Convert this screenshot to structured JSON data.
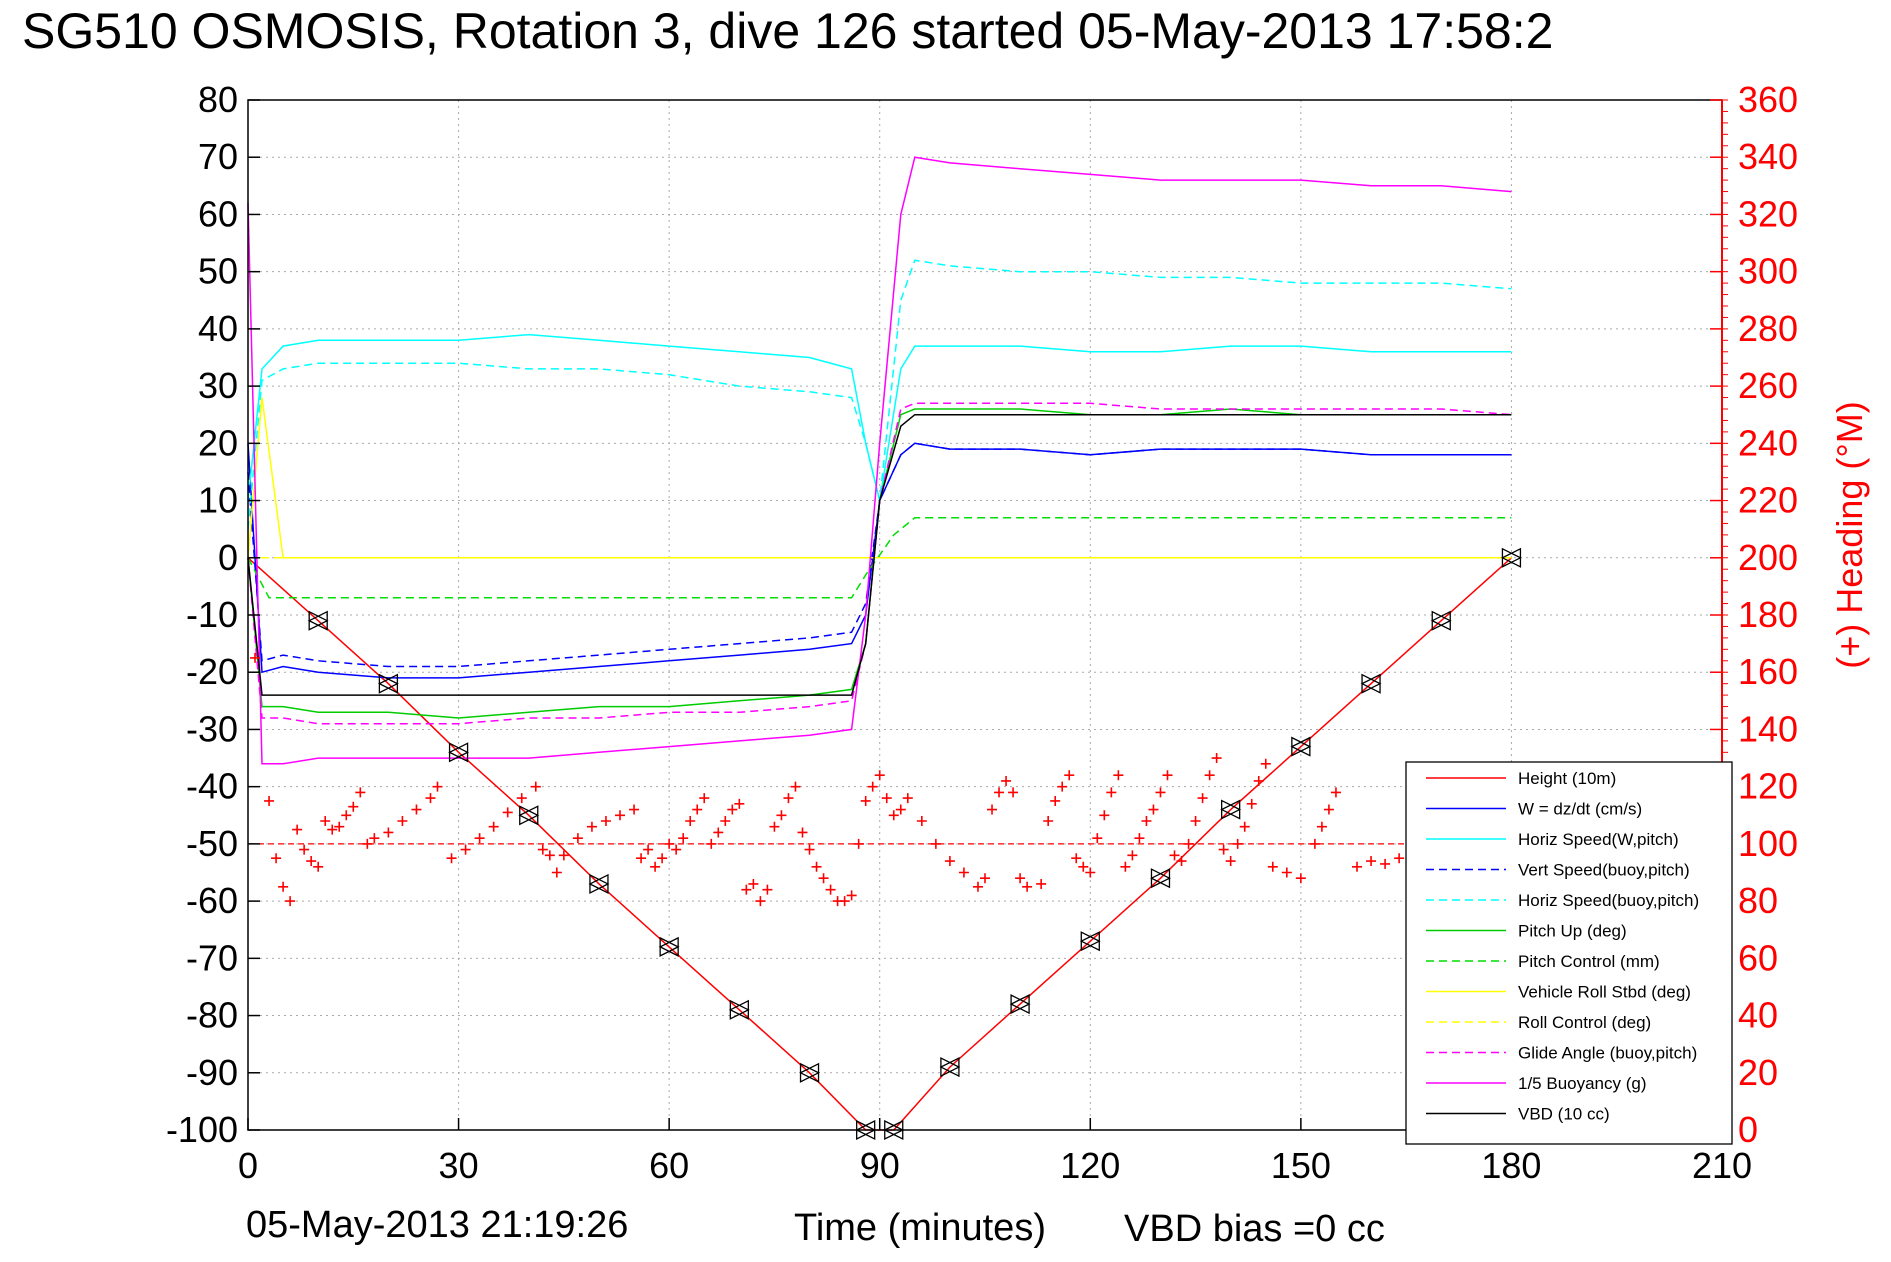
{
  "title": "SG510 OSMOSIS, Rotation 3, dive 126 started 05-May-2013 17:58:2",
  "footer": {
    "timestamp": "05-May-2013 21:19:26",
    "vbd_note": "VBD bias =0 cc"
  },
  "chart_data": {
    "type": "line",
    "xlabel": "Time (minutes)",
    "ylabel_right": "(+) Heading (°M)",
    "xlim": [
      0,
      210
    ],
    "ylim": [
      -100,
      80
    ],
    "ylim_right": [
      0,
      360
    ],
    "xticks": [
      0,
      30,
      60,
      90,
      120,
      150,
      180,
      210
    ],
    "yticks": [
      80,
      70,
      60,
      50,
      40,
      30,
      20,
      10,
      0,
      -10,
      -20,
      -30,
      -40,
      -50,
      -60,
      -70,
      -80,
      -90,
      -100
    ],
    "yticks_right": [
      360,
      340,
      320,
      300,
      280,
      260,
      240,
      220,
      200,
      180,
      160,
      140,
      120,
      100,
      80,
      60,
      40,
      20,
      0
    ],
    "grid": true,
    "legend_position": "bottom-right",
    "colors": {
      "axis": "#000000",
      "right_axis": "#ff0000",
      "grid": "#aaaaaa"
    },
    "series": [
      {
        "name": "Height (10m)",
        "color": "#ff0000",
        "style": "solid",
        "x": [
          0,
          10,
          20,
          30,
          40,
          50,
          60,
          70,
          80,
          88,
          92,
          100,
          110,
          120,
          130,
          140,
          150,
          160,
          170,
          180
        ],
        "y": [
          0,
          -11,
          -22,
          -34,
          -45,
          -57,
          -68,
          -79,
          -90,
          -100,
          -100,
          -89,
          -78,
          -67,
          -56,
          -44,
          -33,
          -22,
          -11,
          0
        ]
      },
      {
        "name": "W = dz/dt (cm/s)",
        "color": "#0000ff",
        "style": "solid",
        "x": [
          0,
          2,
          5,
          10,
          20,
          30,
          40,
          50,
          60,
          70,
          80,
          86,
          88,
          90,
          93,
          95,
          100,
          110,
          120,
          130,
          140,
          150,
          160,
          170,
          180
        ],
        "y": [
          20,
          -20,
          -19,
          -20,
          -21,
          -21,
          -20,
          -19,
          -18,
          -17,
          -16,
          -15,
          -10,
          10,
          18,
          20,
          19,
          19,
          18,
          19,
          19,
          19,
          18,
          18,
          18
        ]
      },
      {
        "name": "Horiz Speed(W,pitch)",
        "color": "#00ffff",
        "style": "solid",
        "x": [
          0,
          2,
          5,
          10,
          20,
          30,
          40,
          50,
          60,
          70,
          80,
          86,
          88,
          90,
          93,
          95,
          100,
          110,
          120,
          130,
          140,
          150,
          160,
          170,
          180
        ],
        "y": [
          10,
          33,
          37,
          38,
          38,
          38,
          39,
          38,
          37,
          36,
          35,
          33,
          20,
          10,
          33,
          37,
          37,
          37,
          36,
          36,
          37,
          37,
          36,
          36,
          36
        ]
      },
      {
        "name": "Vert Speed(buoy,pitch)",
        "color": "#0000ff",
        "style": "dashed",
        "x": [
          0,
          2,
          5,
          10,
          20,
          30,
          40,
          50,
          60,
          70,
          80,
          86,
          88,
          90,
          93,
          95,
          100,
          110,
          120,
          130,
          140,
          150,
          160,
          170,
          180
        ],
        "y": [
          15,
          -18,
          -17,
          -18,
          -19,
          -19,
          -18,
          -17,
          -16,
          -15,
          -14,
          -13,
          -8,
          10,
          18,
          20,
          19,
          19,
          18,
          19,
          19,
          19,
          18,
          18,
          18
        ]
      },
      {
        "name": "Horiz Speed(buoy,pitch)",
        "color": "#00ffff",
        "style": "dashed",
        "x": [
          0,
          2,
          5,
          10,
          20,
          30,
          40,
          50,
          60,
          70,
          80,
          86,
          88,
          90,
          93,
          95,
          100,
          110,
          120,
          130,
          140,
          150,
          160,
          170,
          180
        ],
        "y": [
          5,
          31,
          33,
          34,
          34,
          34,
          33,
          33,
          32,
          30,
          29,
          28,
          20,
          10,
          45,
          52,
          51,
          50,
          50,
          49,
          49,
          48,
          48,
          48,
          47
        ]
      },
      {
        "name": "Pitch Up (deg)",
        "color": "#00cc00",
        "style": "solid",
        "x": [
          0,
          2,
          5,
          10,
          20,
          30,
          40,
          50,
          60,
          70,
          80,
          86,
          88,
          90,
          93,
          95,
          100,
          110,
          120,
          130,
          140,
          150,
          160,
          170,
          180
        ],
        "y": [
          0,
          -26,
          -26,
          -27,
          -27,
          -28,
          -27,
          -26,
          -26,
          -25,
          -24,
          -23,
          -15,
          10,
          25,
          26,
          26,
          26,
          25,
          25,
          26,
          25,
          25,
          25,
          25
        ]
      },
      {
        "name": "Pitch Control (mm)",
        "color": "#00dd00",
        "style": "dashed",
        "x": [
          0,
          3,
          10,
          20,
          40,
          60,
          86,
          88,
          92,
          95,
          120,
          150,
          180
        ],
        "y": [
          0,
          -7,
          -7,
          -7,
          -7,
          -7,
          -7,
          -3,
          4,
          7,
          7,
          7,
          7
        ]
      },
      {
        "name": "Vehicle Roll Stbd (deg)",
        "color": "#ffff00",
        "style": "solid",
        "x": [
          0,
          2,
          5,
          10,
          20,
          40,
          60,
          80,
          90,
          100,
          120,
          140,
          160,
          180
        ],
        "y": [
          0,
          28,
          0,
          0,
          0,
          0,
          0,
          0,
          0,
          0,
          0,
          0,
          0,
          0
        ]
      },
      {
        "name": "Roll Control (deg)",
        "color": "#ffff00",
        "style": "dashed",
        "x": [
          0,
          10,
          30,
          60,
          90,
          120,
          150,
          180
        ],
        "y": [
          0,
          0,
          0,
          0,
          0,
          0,
          0,
          0
        ]
      },
      {
        "name": "Glide Angle (buoy,pitch)",
        "color": "#ff00ff",
        "style": "dashed",
        "x": [
          0,
          2,
          5,
          10,
          20,
          30,
          40,
          50,
          60,
          70,
          80,
          86,
          88,
          90,
          93,
          95,
          100,
          110,
          120,
          130,
          140,
          150,
          160,
          170,
          180
        ],
        "y": [
          0,
          -28,
          -28,
          -29,
          -29,
          -29,
          -28,
          -28,
          -27,
          -27,
          -26,
          -25,
          -15,
          10,
          26,
          27,
          27,
          27,
          27,
          26,
          26,
          26,
          26,
          26,
          25
        ]
      },
      {
        "name": "1/5 Buoyancy (g)",
        "color": "#ff00ff",
        "style": "solid",
        "x": [
          0,
          2,
          5,
          10,
          20,
          30,
          40,
          50,
          60,
          70,
          80,
          86,
          88,
          90,
          93,
          95,
          100,
          110,
          120,
          130,
          140,
          150,
          160,
          170,
          180
        ],
        "y": [
          62,
          -36,
          -36,
          -35,
          -35,
          -35,
          -35,
          -34,
          -33,
          -32,
          -31,
          -30,
          -10,
          20,
          60,
          70,
          69,
          68,
          67,
          66,
          66,
          66,
          65,
          65,
          64
        ]
      },
      {
        "name": "VBD (10 cc)",
        "color": "#000000",
        "style": "solid",
        "x": [
          0,
          2,
          5,
          10,
          20,
          30,
          40,
          50,
          60,
          70,
          80,
          86,
          88,
          90,
          93,
          95,
          100,
          110,
          120,
          130,
          140,
          150,
          160,
          170,
          180
        ],
        "y": [
          0,
          -24,
          -24,
          -24,
          -24,
          -24,
          -24,
          -24,
          -24,
          -24,
          -24,
          -24,
          -15,
          10,
          23,
          25,
          25,
          25,
          25,
          25,
          25,
          25,
          25,
          25,
          25
        ]
      }
    ],
    "heading_series": {
      "axis": "right",
      "marker": "+",
      "color": "#ff0000",
      "reference_line": 100,
      "points": [
        [
          1,
          165
        ],
        [
          3,
          115
        ],
        [
          4,
          95
        ],
        [
          5,
          85
        ],
        [
          6,
          80
        ],
        [
          7,
          105
        ],
        [
          8,
          98
        ],
        [
          9,
          94
        ],
        [
          10,
          92
        ],
        [
          11,
          108
        ],
        [
          12,
          105
        ],
        [
          13,
          106
        ],
        [
          14,
          110
        ],
        [
          15,
          113
        ],
        [
          16,
          118
        ],
        [
          17,
          100
        ],
        [
          18,
          102
        ],
        [
          20,
          104
        ],
        [
          22,
          108
        ],
        [
          24,
          112
        ],
        [
          26,
          116
        ],
        [
          27,
          120
        ],
        [
          29,
          95
        ],
        [
          31,
          98
        ],
        [
          33,
          102
        ],
        [
          35,
          106
        ],
        [
          37,
          111
        ],
        [
          39,
          116
        ],
        [
          41,
          120
        ],
        [
          42,
          98
        ],
        [
          43,
          96
        ],
        [
          44,
          90
        ],
        [
          45,
          96
        ],
        [
          47,
          102
        ],
        [
          49,
          106
        ],
        [
          51,
          108
        ],
        [
          53,
          110
        ],
        [
          55,
          112
        ],
        [
          56,
          95
        ],
        [
          57,
          98
        ],
        [
          58,
          92
        ],
        [
          59,
          95
        ],
        [
          60,
          100
        ],
        [
          61,
          98
        ],
        [
          62,
          102
        ],
        [
          63,
          108
        ],
        [
          64,
          112
        ],
        [
          65,
          116
        ],
        [
          66,
          100
        ],
        [
          67,
          104
        ],
        [
          68,
          108
        ],
        [
          69,
          112
        ],
        [
          70,
          114
        ],
        [
          71,
          84
        ],
        [
          72,
          86
        ],
        [
          73,
          80
        ],
        [
          74,
          84
        ],
        [
          75,
          106
        ],
        [
          76,
          110
        ],
        [
          77,
          116
        ],
        [
          78,
          120
        ],
        [
          79,
          104
        ],
        [
          80,
          98
        ],
        [
          81,
          92
        ],
        [
          82,
          88
        ],
        [
          83,
          84
        ],
        [
          84,
          80
        ],
        [
          85,
          80
        ],
        [
          86,
          82
        ],
        [
          87,
          100
        ],
        [
          88,
          115
        ],
        [
          89,
          120
        ],
        [
          90,
          124
        ],
        [
          91,
          116
        ],
        [
          92,
          110
        ],
        [
          93,
          112
        ],
        [
          94,
          116
        ],
        [
          96,
          108
        ],
        [
          98,
          100
        ],
        [
          100,
          94
        ],
        [
          102,
          90
        ],
        [
          104,
          85
        ],
        [
          105,
          88
        ],
        [
          106,
          112
        ],
        [
          107,
          118
        ],
        [
          108,
          122
        ],
        [
          109,
          118
        ],
        [
          110,
          88
        ],
        [
          111,
          85
        ],
        [
          113,
          86
        ],
        [
          114,
          108
        ],
        [
          115,
          115
        ],
        [
          116,
          120
        ],
        [
          117,
          124
        ],
        [
          118,
          95
        ],
        [
          119,
          92
        ],
        [
          120,
          90
        ],
        [
          121,
          102
        ],
        [
          122,
          110
        ],
        [
          123,
          118
        ],
        [
          124,
          124
        ],
        [
          125,
          92
        ],
        [
          126,
          96
        ],
        [
          127,
          102
        ],
        [
          128,
          108
        ],
        [
          129,
          112
        ],
        [
          130,
          118
        ],
        [
          131,
          124
        ],
        [
          132,
          96
        ],
        [
          133,
          94
        ],
        [
          134,
          100
        ],
        [
          135,
          108
        ],
        [
          136,
          116
        ],
        [
          137,
          124
        ],
        [
          138,
          130
        ],
        [
          139,
          98
        ],
        [
          140,
          94
        ],
        [
          141,
          100
        ],
        [
          142,
          106
        ],
        [
          143,
          114
        ],
        [
          144,
          122
        ],
        [
          145,
          128
        ],
        [
          146,
          92
        ],
        [
          148,
          90
        ],
        [
          150,
          88
        ],
        [
          152,
          100
        ],
        [
          153,
          106
        ],
        [
          154,
          112
        ],
        [
          155,
          118
        ],
        [
          158,
          92
        ],
        [
          160,
          94
        ],
        [
          162,
          93
        ],
        [
          164,
          95
        ],
        [
          166,
          94
        ],
        [
          168,
          96
        ]
      ]
    }
  }
}
